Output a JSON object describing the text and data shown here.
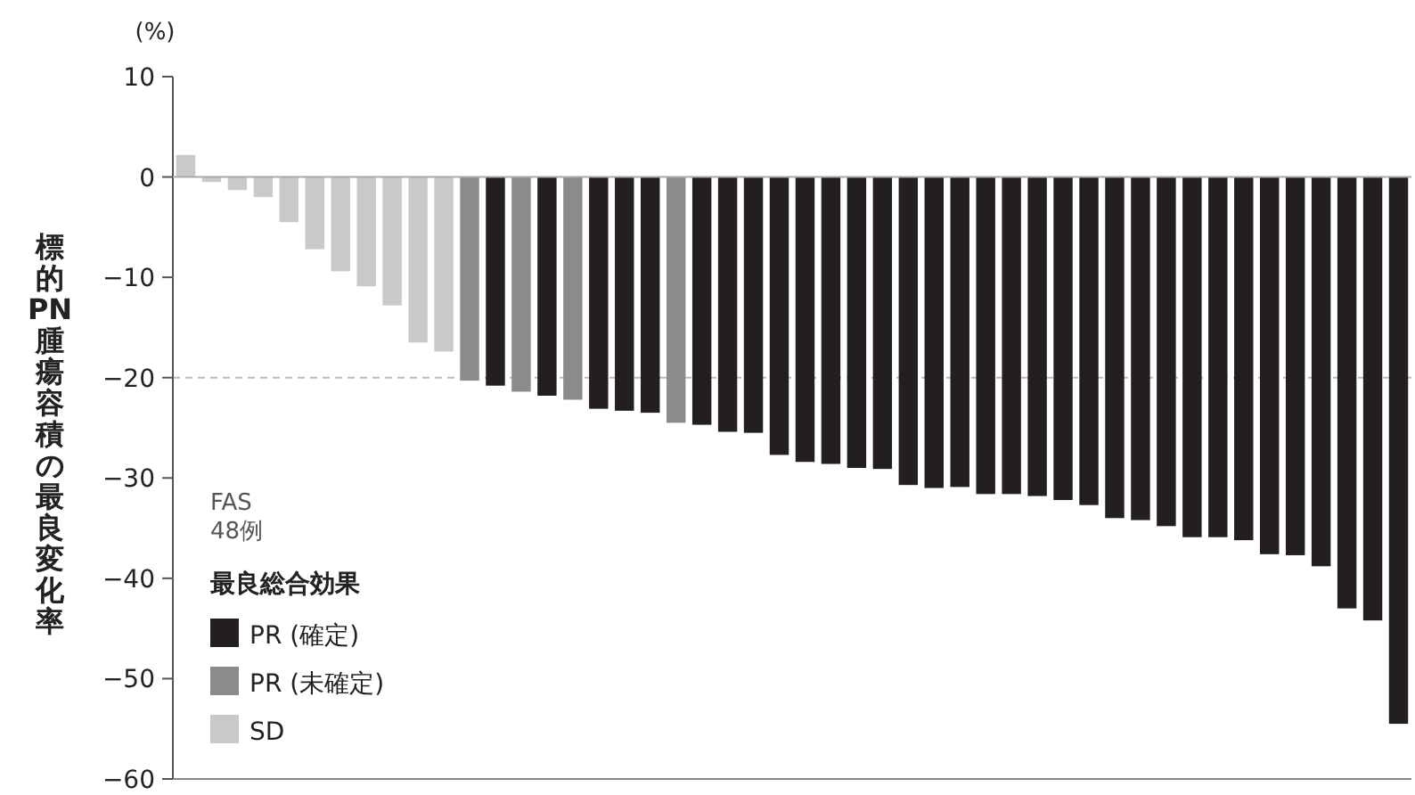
{
  "chart_data": {
    "type": "bar",
    "ylabel": "標的PN腫瘍容積の最良変化率",
    "annotations": [
      "(%)",
      "FAS",
      "48例"
    ],
    "legend_title": "最良総合効果",
    "legend": "bottom left",
    "categories": [
      null,
      null,
      null,
      null,
      null,
      null,
      null,
      null,
      null,
      null,
      null,
      null,
      null,
      null,
      null,
      null,
      null,
      null,
      null,
      null,
      null,
      null,
      null,
      null,
      null,
      null,
      null,
      null,
      null,
      null,
      null,
      null,
      null,
      null,
      null,
      null,
      null,
      null,
      null,
      null,
      null,
      null,
      null,
      null,
      null,
      null,
      null,
      null
    ],
    "series": [
      {
        "name": "PR (確定)",
        "color": "#231f20",
        "values": [
          null,
          null,
          null,
          null,
          null,
          null,
          null,
          null,
          null,
          null,
          null,
          null,
          -20.8,
          null,
          -21.8,
          null,
          -23.1,
          -23.3,
          -23.5,
          null,
          -24.7,
          -25.4,
          -25.5,
          -27.7,
          -28.4,
          -28.6,
          -29.0,
          -29.1,
          -30.7,
          -31.0,
          -30.9,
          -31.6,
          -31.6,
          -31.8,
          -32.2,
          -32.7,
          -34.0,
          -34.2,
          -34.8,
          -35.9,
          -35.9,
          -36.2,
          -37.6,
          -37.7,
          -38.8,
          -43.0,
          -44.2,
          -54.5
        ]
      },
      {
        "name": "PR (未確定)",
        "color": "#8a8b8d",
        "values": [
          null,
          null,
          null,
          null,
          null,
          null,
          null,
          null,
          null,
          null,
          null,
          -20.3,
          null,
          -21.4,
          null,
          -22.2,
          null,
          null,
          null,
          -24.5,
          null,
          null,
          null,
          null,
          null,
          null,
          null,
          null,
          null,
          null,
          null,
          null,
          null,
          null,
          null,
          null,
          null,
          null,
          null,
          null,
          null,
          null,
          null,
          null,
          null,
          null,
          null,
          null
        ]
      },
      {
        "name": "SD",
        "color": "#c8c9ca",
        "values": [
          2.2,
          -0.5,
          -1.3,
          -2.0,
          -4.5,
          -7.2,
          -9.4,
          -10.9,
          -12.8,
          -16.5,
          -17.4,
          null,
          null,
          null,
          null,
          null,
          null,
          null,
          null,
          null,
          null,
          null,
          null,
          null,
          null,
          null,
          null,
          null,
          null,
          null,
          null,
          null,
          null,
          null,
          null,
          null,
          null,
          null,
          null,
          null,
          null,
          null,
          null,
          null,
          null,
          null,
          null,
          null
        ]
      }
    ],
    "ylim": [
      -60,
      10
    ],
    "yticks": [
      -60,
      -50,
      -40,
      -30,
      -20,
      -10,
      0,
      10
    ],
    "ref_lines": [
      {
        "axis": "y",
        "value": -20,
        "color": "#bbbbbb",
        "line_style": "dashed"
      }
    ]
  }
}
